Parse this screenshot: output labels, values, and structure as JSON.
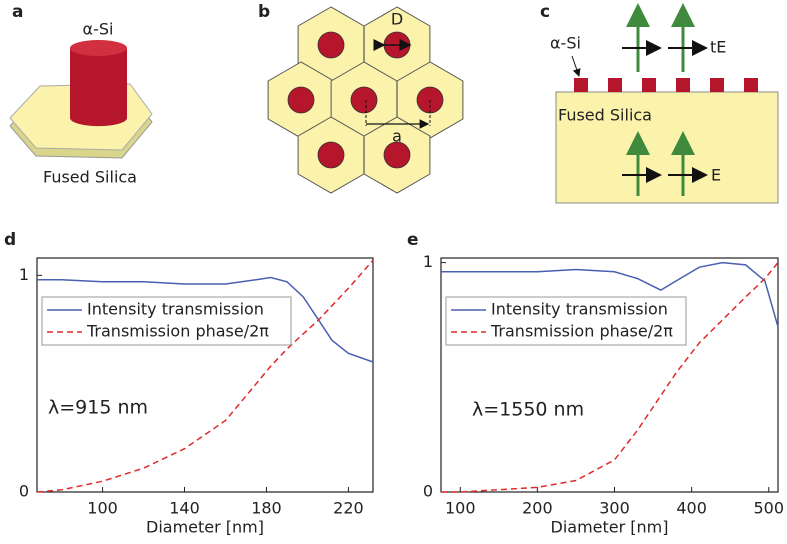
{
  "diagrams": {
    "a": {
      "panel_label": "a",
      "pillar": "α-Si",
      "substrate": "Fused Silica"
    },
    "b": {
      "panel_label": "b",
      "diameter": "D",
      "lattice": "a"
    },
    "c": {
      "panel_label": "c",
      "pillar": "α-Si",
      "out_field": "tE",
      "substrate": "Fused Silica",
      "in_field": "E"
    }
  },
  "chart_data": [
    {
      "type": "line",
      "panel_label": "d",
      "xlabel": "Diameter [nm]",
      "annotation": "λ=915 nm",
      "x": [
        68,
        80,
        100,
        120,
        140,
        160,
        175,
        182,
        190,
        198,
        205,
        212,
        220,
        232
      ],
      "series": [
        {
          "name": "Intensity transmission",
          "color": "#4a5fb0",
          "dashed": false,
          "values": [
            0.98,
            0.98,
            0.97,
            0.97,
            0.96,
            0.96,
            0.98,
            0.99,
            0.97,
            0.9,
            0.8,
            0.7,
            0.64,
            0.6
          ]
        },
        {
          "name": "Transmission phase/2π",
          "color": "#e02a2a",
          "dashed": true,
          "values": [
            0,
            0.01,
            0.05,
            0.11,
            0.2,
            0.33,
            0.5,
            0.58,
            0.66,
            0.73,
            0.79,
            0.86,
            0.94,
            1.07
          ]
        }
      ],
      "xlim": [
        68,
        232
      ],
      "ylim": [
        0,
        1.08
      ],
      "xticks": [
        100,
        140,
        180,
        220
      ],
      "yticks": [
        0,
        1
      ]
    },
    {
      "type": "line",
      "panel_label": "e",
      "xlabel": "Diameter [nm]",
      "annotation": "λ=1550 nm",
      "x": [
        75,
        100,
        150,
        200,
        250,
        300,
        330,
        360,
        380,
        410,
        440,
        470,
        495,
        512
      ],
      "series": [
        {
          "name": "Intensity transmission",
          "color": "#4a5fb0",
          "dashed": false,
          "values": [
            0.96,
            0.96,
            0.96,
            0.96,
            0.97,
            0.96,
            0.93,
            0.88,
            0.92,
            0.98,
            1.0,
            0.99,
            0.92,
            0.72
          ]
        },
        {
          "name": "Transmission phase/2π",
          "color": "#e02a2a",
          "dashed": true,
          "values": [
            0,
            0,
            0.01,
            0.02,
            0.05,
            0.14,
            0.27,
            0.42,
            0.52,
            0.65,
            0.75,
            0.85,
            0.93,
            1.0
          ]
        }
      ],
      "xlim": [
        75,
        512
      ],
      "ylim": [
        0,
        1.02
      ],
      "xticks": [
        100,
        200,
        300,
        400,
        500
      ],
      "yticks": [
        0,
        1
      ]
    }
  ]
}
